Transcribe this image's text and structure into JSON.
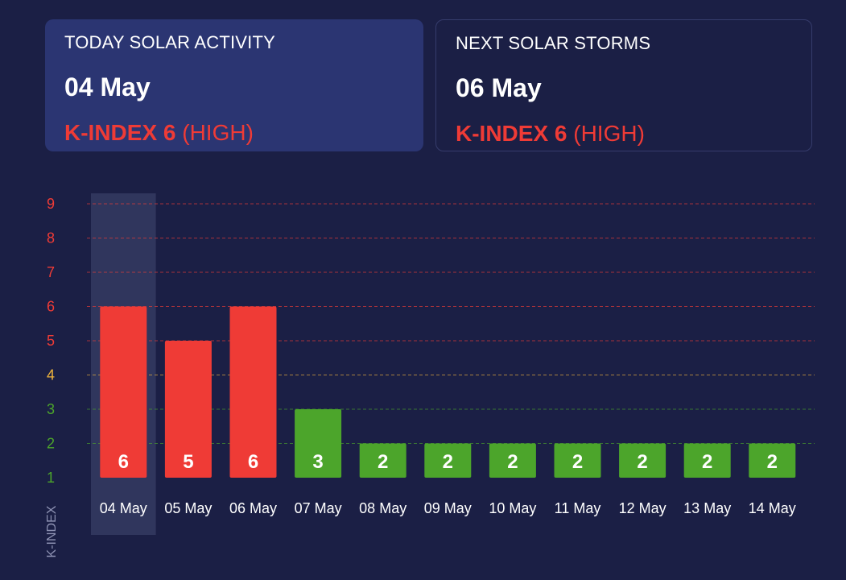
{
  "today_card": {
    "title": "TODAY SOLAR ACTIVITY",
    "date": "04 May",
    "k_index_label": "K-INDEX 6",
    "level": "(HIGH)"
  },
  "next_card": {
    "title": "NEXT SOLAR STORMS",
    "date": "06 May",
    "k_index_label": "K-INDEX 6",
    "level": "(HIGH)"
  },
  "colors": {
    "background": "#1b1f45",
    "today_card_bg": "#2b3572",
    "high": "#ef3b36",
    "moderate": "#f0b43c",
    "low": "#4ca52b",
    "selected_highlight": "#33385f"
  },
  "chart_data": {
    "type": "bar",
    "categories": [
      "04 May",
      "05 May",
      "06 May",
      "07 May",
      "08 May",
      "09 May",
      "10 May",
      "11 May",
      "12 May",
      "13 May",
      "14 May"
    ],
    "values": [
      6,
      5,
      6,
      3,
      2,
      2,
      2,
      2,
      2,
      2,
      2
    ],
    "ylabel": "K-INDEX",
    "ylim": [
      1,
      9
    ],
    "yticks": [
      1,
      2,
      3,
      4,
      5,
      6,
      7,
      8,
      9
    ],
    "highlighted_category": "04 May",
    "grid": "dashed horizontal lines",
    "data_labels": true
  }
}
